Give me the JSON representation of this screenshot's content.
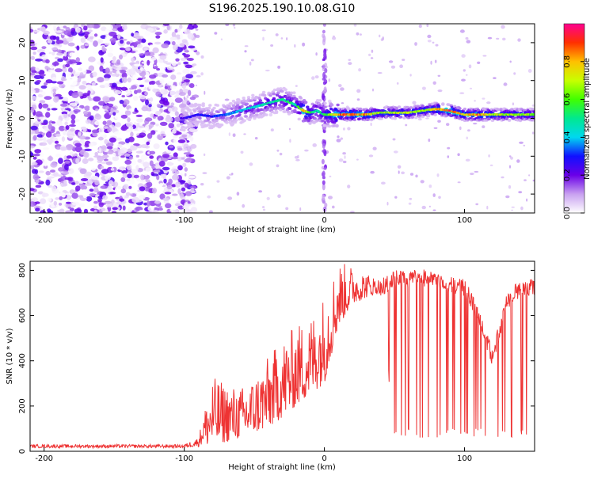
{
  "chart_data": [
    {
      "type": "heatmap",
      "title": "S196.2025.190.10.08.G10",
      "xlabel": "Height of straight line (km)",
      "ylabel": "Frequency (Hz)",
      "xlim": [
        -210,
        150
      ],
      "ylim": [
        -25,
        25
      ],
      "xticks": [
        -200,
        -100,
        0,
        100
      ],
      "yticks": [
        -20,
        -10,
        0,
        10,
        20
      ],
      "colorbar": {
        "label": "Normalized spectral amplitude",
        "ticks": [
          "0.0",
          "0.2",
          "0.4",
          "0.6",
          "0.8"
        ],
        "range": [
          0,
          1
        ]
      },
      "ridge": {
        "x": [
          -100,
          -90,
          -80,
          -70,
          -60,
          -50,
          -40,
          -30,
          -20,
          -15,
          -10,
          -5,
          0,
          5,
          10,
          20,
          30,
          40,
          50,
          60,
          70,
          80,
          90,
          100,
          110,
          120,
          130,
          140,
          150
        ],
        "freq": [
          0,
          1,
          0.5,
          1,
          2,
          3,
          4,
          5,
          3.5,
          2,
          1.5,
          2,
          1,
          1,
          1,
          1,
          1,
          1.5,
          1.5,
          1.5,
          2,
          2.5,
          2,
          1,
          1,
          1,
          1,
          1,
          1
        ],
        "amplitude": [
          0.25,
          0.3,
          0.3,
          0.35,
          0.4,
          0.45,
          0.5,
          0.55,
          0.5,
          0.85,
          0.6,
          0.5,
          0.55,
          0.7,
          0.85,
          0.95,
          0.85,
          0.7,
          0.7,
          0.75,
          0.7,
          0.8,
          0.95,
          0.8,
          0.9,
          0.75,
          0.7,
          0.7,
          0.65
        ]
      },
      "noise_region": [
        -210,
        -100
      ]
    },
    {
      "type": "line",
      "xlabel": "Height of straight line (km)",
      "ylabel": "SNR (10 * v/v)",
      "xlim": [
        -210,
        150
      ],
      "ylim": [
        0,
        840
      ],
      "xticks": [
        -200,
        -100,
        0,
        100
      ],
      "yticks": [
        0,
        200,
        400,
        600,
        800
      ],
      "color": "#ee3333",
      "envelope": {
        "x": [
          -210,
          -100,
          -90,
          -80,
          -70,
          -60,
          -50,
          -40,
          -30,
          -20,
          -10,
          0,
          10,
          20,
          30,
          40,
          50,
          60,
          70,
          80,
          90,
          100,
          110,
          120,
          130,
          140,
          150
        ],
        "low": [
          15,
          15,
          20,
          30,
          40,
          60,
          80,
          100,
          150,
          200,
          250,
          300,
          550,
          650,
          680,
          700,
          60,
          60,
          60,
          60,
          60,
          60,
          60,
          60,
          60,
          60,
          60
        ],
        "high": [
          30,
          30,
          60,
          330,
          300,
          280,
          330,
          420,
          500,
          560,
          600,
          700,
          840,
          820,
          790,
          760,
          800,
          800,
          810,
          800,
          780,
          760,
          650,
          450,
          700,
          760,
          770
        ]
      }
    }
  ]
}
